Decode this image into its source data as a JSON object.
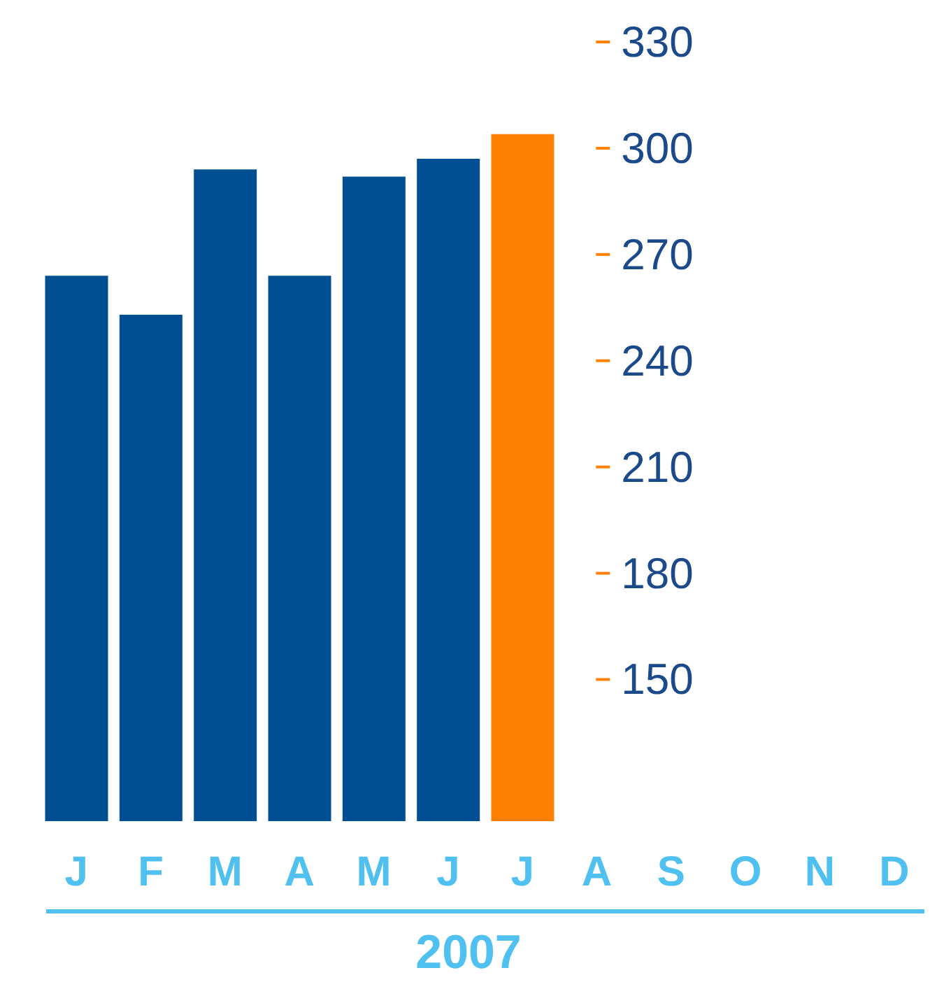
{
  "chart_data": {
    "type": "bar",
    "categories": [
      "J",
      "F",
      "M",
      "A",
      "M",
      "J",
      "J",
      "A",
      "S",
      "O",
      "N",
      "D"
    ],
    "values": [
      264,
      253,
      294,
      264,
      292,
      297,
      304,
      null,
      null,
      null,
      null,
      null
    ],
    "colors": [
      "#004f93",
      "#004f93",
      "#004f93",
      "#004f93",
      "#004f93",
      "#004f93",
      "#ff7f00",
      "#004f93",
      "#004f93",
      "#004f93",
      "#004f93",
      "#004f93"
    ],
    "xlabel": "2007",
    "ylim": [
      110,
      330
    ],
    "yticks": [
      150,
      180,
      210,
      240,
      270,
      300,
      330
    ],
    "grid": false,
    "legend": false
  }
}
